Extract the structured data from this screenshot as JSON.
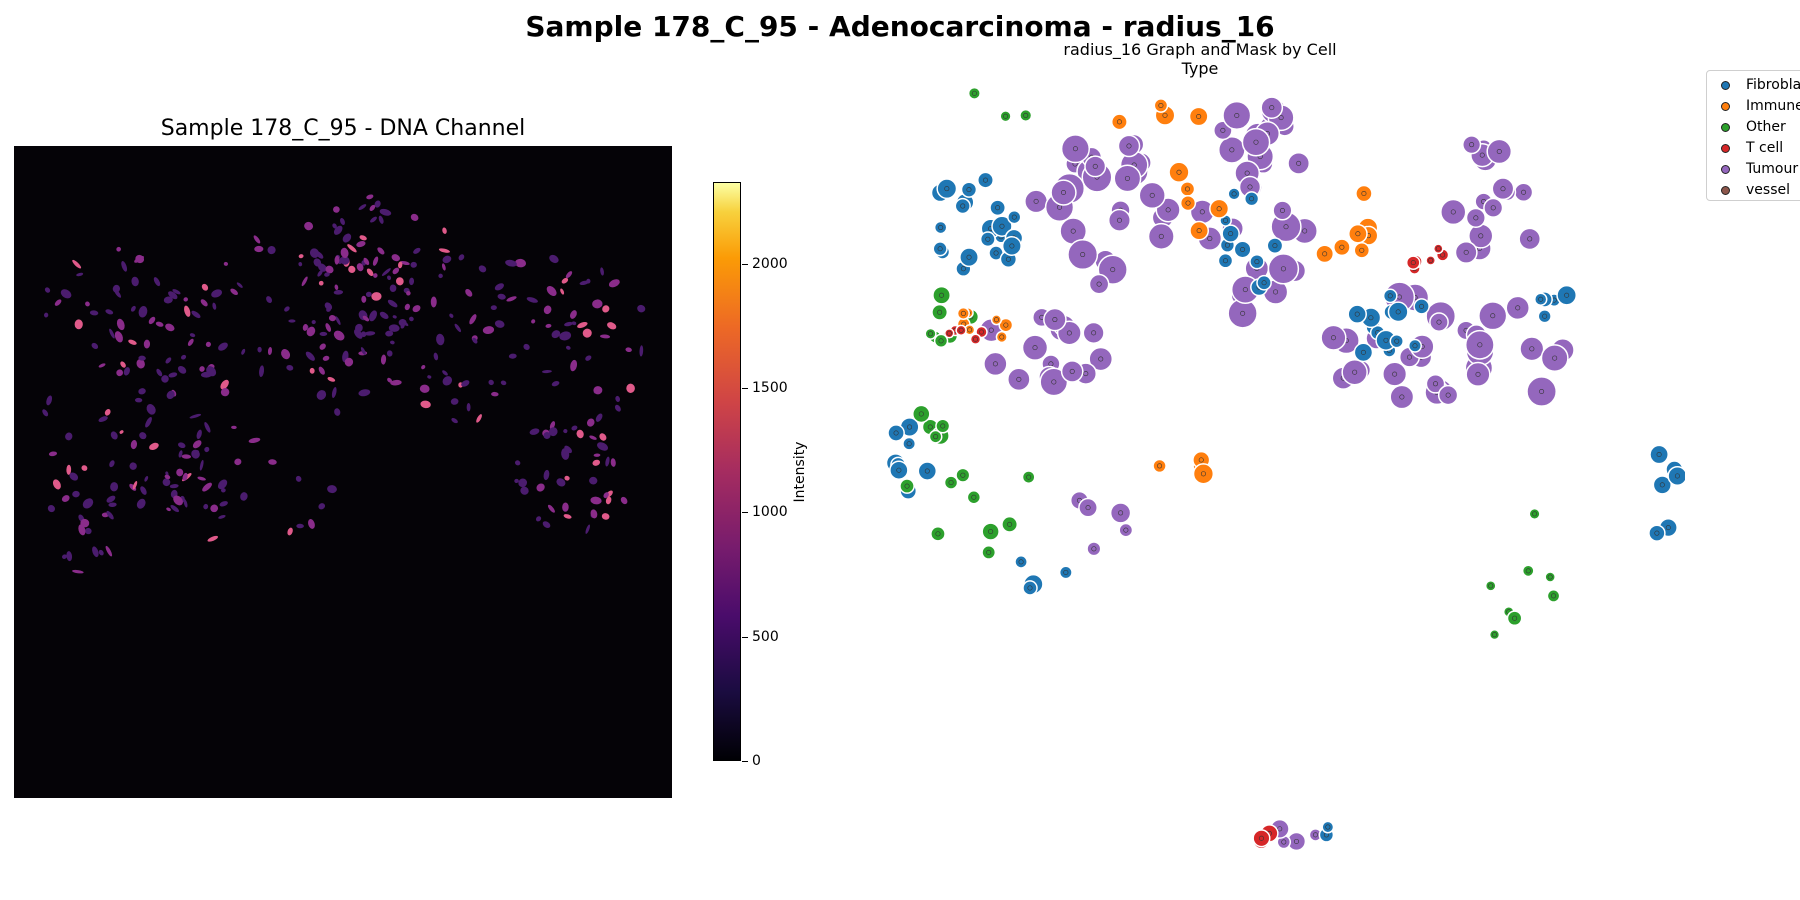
{
  "figure": {
    "suptitle": "Sample 178_C_95 - Adenocarcinoma - radius_16"
  },
  "left_panel": {
    "title": "Sample 178_C_95 - DNA Channel",
    "colorbar": {
      "label": "Intensity",
      "ticks": [
        "0",
        "500",
        "1000",
        "1500",
        "2000"
      ],
      "range": [
        0,
        2330
      ],
      "colormap": "inferno"
    }
  },
  "right_panel": {
    "title": "radius_16 Graph and Mask by Cell Type",
    "legend": [
      {
        "label": "Fibrobla",
        "color": "#1f77b4"
      },
      {
        "label": "Immune",
        "color": "#ff7f0e"
      },
      {
        "label": "Other",
        "color": "#2ca02c"
      },
      {
        "label": "T cell",
        "color": "#d62728"
      },
      {
        "label": "Tumour",
        "color": "#9467bd"
      },
      {
        "label": "vessel",
        "color": "#8c564b"
      }
    ]
  }
}
